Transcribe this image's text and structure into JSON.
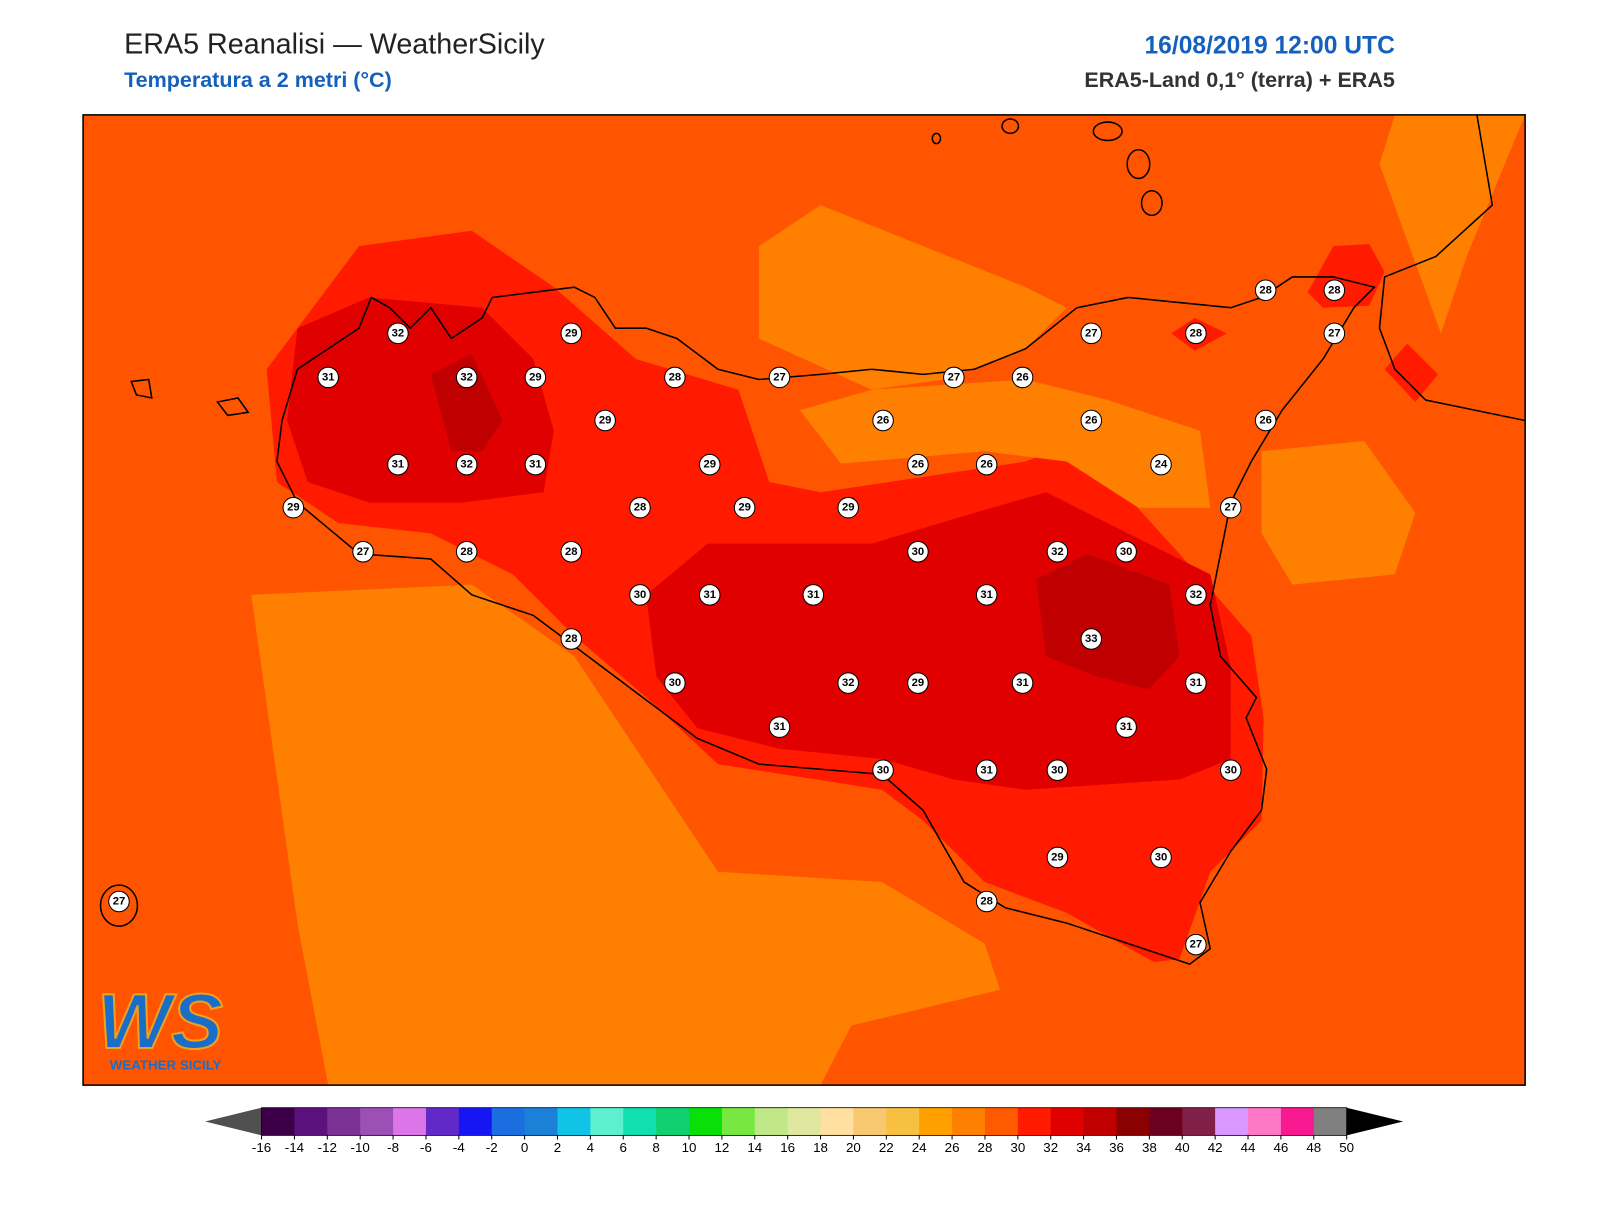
{
  "header": {
    "title": "ERA5 Reanalisi — WeatherSicily",
    "subtitle": "Temperatura a 2 metri (°C)",
    "datetime": "16/08/2019 12:00 UTC",
    "source": "ERA5-Land 0,1° (terra) + ERA5"
  },
  "map": {
    "stations": [
      32,
      29,
      31,
      32,
      29,
      28,
      27,
      29,
      31,
      32,
      31,
      29,
      29,
      28,
      29,
      29,
      27,
      28,
      28,
      30,
      30,
      31,
      31,
      28,
      30,
      31,
      32,
      29,
      30,
      27,
      26,
      26,
      26,
      26,
      27,
      28,
      28,
      28,
      27,
      26,
      26,
      24,
      27,
      32,
      30,
      31,
      32,
      33,
      31,
      31,
      31,
      31,
      30,
      30,
      29,
      30,
      28,
      27,
      27
    ]
  },
  "colorbar": {
    "ticks": [
      -16,
      -14,
      -12,
      -10,
      -8,
      -6,
      -4,
      -2,
      0,
      2,
      4,
      6,
      8,
      10,
      12,
      14,
      16,
      18,
      20,
      22,
      24,
      26,
      28,
      30,
      32,
      34,
      36,
      38,
      40,
      42,
      44,
      46,
      48,
      50
    ],
    "colors": [
      "#3d0048",
      "#5a117c",
      "#7b3196",
      "#9c50b5",
      "#dc75e8",
      "#6229c9",
      "#1616f5",
      "#1a6ee0",
      "#1a80d8",
      "#10c4e8",
      "#5cf0d0",
      "#10e0b0",
      "#10d070",
      "#08e008",
      "#78e840",
      "#c0e888",
      "#e0e8a0",
      "#ffe0a0",
      "#f8c870",
      "#f8c040",
      "#ffa000",
      "#ff8000",
      "#ff5a00",
      "#ff1a00",
      "#e00000",
      "#c00000",
      "#8b0000",
      "#6b0020",
      "#802048",
      "#d898ff",
      "#ff78c8",
      "#f81890",
      "#808080",
      "#383838"
    ],
    "under_color": "#505050",
    "over_color": "#000000"
  },
  "logo": {
    "mark": "WS",
    "name": "WEATHER SICILY"
  }
}
